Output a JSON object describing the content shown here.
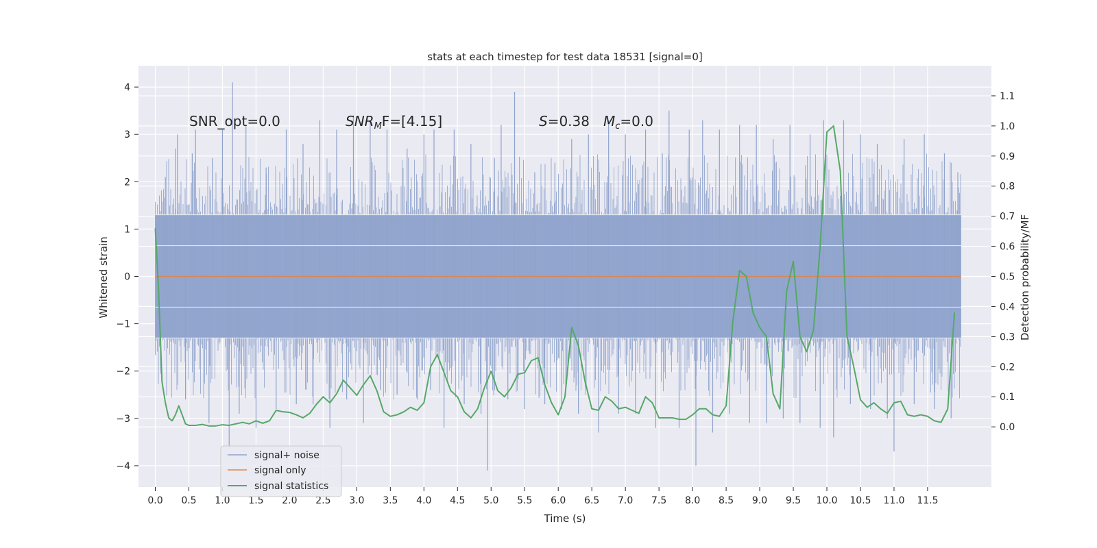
{
  "chart_data": {
    "type": "line",
    "title": "stats at each timestep for test data 18531 [signal=0]",
    "xlabel": "Time (s)",
    "ylabel": "Whitened strain",
    "ylabel_right": "Detection probability/MF",
    "xlim": [
      -0.25,
      12.45
    ],
    "ylim": [
      -4.45,
      4.45
    ],
    "ylim_right": [
      -0.2,
      1.2
    ],
    "x_ticks": [
      "0.0",
      "0.5",
      "1.0",
      "1.5",
      "2.0",
      "2.5",
      "3.0",
      "3.5",
      "4.0",
      "4.5",
      "5.0",
      "5.5",
      "6.0",
      "6.5",
      "7.0",
      "7.5",
      "8.0",
      "8.5",
      "9.0",
      "9.5",
      "10.0",
      "10.5",
      "11.0",
      "11.5"
    ],
    "y_ticks": [
      "4",
      "3",
      "2",
      "1",
      "0",
      "−1",
      "−2",
      "−3",
      "−4"
    ],
    "y_ticks_right": [
      "1.1",
      "1.0",
      "0.9",
      "0.8",
      "0.7",
      "0.6",
      "0.5",
      "0.4",
      "0.3",
      "0.2",
      "0.1",
      "0.0"
    ],
    "grid": true,
    "legend_position": "lower-left",
    "annotations": {
      "snr_opt": "SNR_opt=0.0",
      "snr_mf_main": "SNR",
      "snr_mf_sub": "M",
      "snr_mf_tail": "F=[4.15]",
      "s_sym": "S",
      "s_val": "=0.38",
      "mc_sym": "M",
      "mc_sub": "c",
      "mc_val": "=0.0"
    },
    "series": [
      {
        "name": "signal+ noise",
        "color": "#8fa3cc",
        "x_range": [
          0.0,
          12.0
        ],
        "band": [
          -1.3,
          1.3
        ],
        "peaks": [
          [
            0.15,
            2.1
          ],
          [
            0.3,
            2.7
          ],
          [
            0.33,
            3.0
          ],
          [
            0.45,
            -2.6
          ],
          [
            0.55,
            2.6
          ],
          [
            0.6,
            3.1
          ],
          [
            0.8,
            -3.1
          ],
          [
            0.85,
            2.5
          ],
          [
            1.0,
            3.1
          ],
          [
            1.1,
            -3.6
          ],
          [
            1.15,
            4.1
          ],
          [
            1.25,
            -2.9
          ],
          [
            1.35,
            3.2
          ],
          [
            1.5,
            -3.2
          ],
          [
            1.65,
            2.3
          ],
          [
            1.8,
            -2.8
          ],
          [
            1.95,
            3.1
          ],
          [
            2.1,
            -2.7
          ],
          [
            2.2,
            2.8
          ],
          [
            2.35,
            -2.7
          ],
          [
            2.45,
            3.3
          ],
          [
            2.6,
            -3.2
          ],
          [
            2.7,
            3.1
          ],
          [
            2.85,
            -2.6
          ],
          [
            2.95,
            3.4
          ],
          [
            3.1,
            -3.1
          ],
          [
            3.2,
            3.3
          ],
          [
            3.35,
            -2.4
          ],
          [
            3.45,
            3.1
          ],
          [
            3.6,
            -2.5
          ],
          [
            3.75,
            2.7
          ],
          [
            3.9,
            -2.6
          ],
          [
            4.0,
            3.0
          ],
          [
            4.1,
            -2.4
          ],
          [
            4.15,
            3.1
          ],
          [
            4.3,
            -3.2
          ],
          [
            4.45,
            3.1
          ],
          [
            4.6,
            -2.7
          ],
          [
            4.7,
            2.8
          ],
          [
            4.85,
            -2.9
          ],
          [
            4.95,
            -4.1
          ],
          [
            5.05,
            2.5
          ],
          [
            5.15,
            3.2
          ],
          [
            5.25,
            -2.6
          ],
          [
            5.35,
            3.9
          ],
          [
            5.5,
            -2.8
          ],
          [
            5.65,
            2.2
          ],
          [
            5.8,
            -2.7
          ],
          [
            5.95,
            2.4
          ],
          [
            6.05,
            -2.8
          ],
          [
            6.2,
            2.9
          ],
          [
            6.3,
            -2.9
          ],
          [
            6.45,
            3.0
          ],
          [
            6.6,
            -3.3
          ],
          [
            6.75,
            3.3
          ],
          [
            6.9,
            -2.9
          ],
          [
            7.0,
            3.0
          ],
          [
            7.15,
            -2.9
          ],
          [
            7.3,
            3.1
          ],
          [
            7.45,
            -3.2
          ],
          [
            7.55,
            2.6
          ],
          [
            7.65,
            3.5
          ],
          [
            7.8,
            -3.2
          ],
          [
            7.95,
            3.1
          ],
          [
            8.05,
            -4.0
          ],
          [
            8.15,
            3.3
          ],
          [
            8.3,
            -3.3
          ],
          [
            8.4,
            3.1
          ],
          [
            8.55,
            -2.9
          ],
          [
            8.7,
            3.2
          ],
          [
            8.85,
            -3.1
          ],
          [
            8.95,
            3.2
          ],
          [
            9.1,
            -3.1
          ],
          [
            9.2,
            2.9
          ],
          [
            9.35,
            -3.0
          ],
          [
            9.45,
            3.2
          ],
          [
            9.6,
            -3.1
          ],
          [
            9.75,
            3.0
          ],
          [
            9.9,
            -3.2
          ],
          [
            9.95,
            3.3
          ],
          [
            10.1,
            -3.4
          ],
          [
            10.25,
            3.3
          ],
          [
            10.35,
            -2.7
          ],
          [
            10.5,
            3.0
          ],
          [
            10.65,
            -2.8
          ],
          [
            10.75,
            2.8
          ],
          [
            10.9,
            -3.0
          ],
          [
            11.0,
            -3.7
          ],
          [
            11.15,
            2.9
          ],
          [
            11.3,
            -2.7
          ],
          [
            11.45,
            3.0
          ],
          [
            11.6,
            -2.8
          ],
          [
            11.75,
            2.6
          ],
          [
            11.85,
            -3.0
          ],
          [
            11.95,
            2.2
          ]
        ]
      },
      {
        "name": "signal only",
        "color": "#dd8452",
        "points": [
          [
            0.0,
            0.0
          ],
          [
            12.0,
            0.0
          ]
        ]
      },
      {
        "name": "signal statistics",
        "color": "#55a868",
        "axis": "right",
        "points": [
          [
            0.0,
            0.66
          ],
          [
            0.05,
            0.45
          ],
          [
            0.1,
            0.15
          ],
          [
            0.15,
            0.08
          ],
          [
            0.2,
            0.03
          ],
          [
            0.25,
            0.02
          ],
          [
            0.3,
            0.04
          ],
          [
            0.35,
            0.07
          ],
          [
            0.4,
            0.04
          ],
          [
            0.45,
            0.01
          ],
          [
            0.5,
            0.005
          ],
          [
            0.6,
            0.005
          ],
          [
            0.7,
            0.008
          ],
          [
            0.8,
            0.003
          ],
          [
            0.9,
            0.003
          ],
          [
            1.0,
            0.007
          ],
          [
            1.1,
            0.005
          ],
          [
            1.2,
            0.01
          ],
          [
            1.3,
            0.015
          ],
          [
            1.4,
            0.01
          ],
          [
            1.5,
            0.02
          ],
          [
            1.6,
            0.012
          ],
          [
            1.7,
            0.02
          ],
          [
            1.8,
            0.055
          ],
          [
            1.9,
            0.05
          ],
          [
            2.0,
            0.048
          ],
          [
            2.1,
            0.04
          ],
          [
            2.2,
            0.03
          ],
          [
            2.3,
            0.045
          ],
          [
            2.4,
            0.075
          ],
          [
            2.5,
            0.1
          ],
          [
            2.6,
            0.08
          ],
          [
            2.7,
            0.11
          ],
          [
            2.8,
            0.155
          ],
          [
            2.9,
            0.13
          ],
          [
            3.0,
            0.105
          ],
          [
            3.1,
            0.14
          ],
          [
            3.2,
            0.17
          ],
          [
            3.3,
            0.12
          ],
          [
            3.4,
            0.05
          ],
          [
            3.5,
            0.035
          ],
          [
            3.6,
            0.04
          ],
          [
            3.7,
            0.05
          ],
          [
            3.8,
            0.065
          ],
          [
            3.9,
            0.055
          ],
          [
            4.0,
            0.08
          ],
          [
            4.1,
            0.2
          ],
          [
            4.2,
            0.24
          ],
          [
            4.3,
            0.18
          ],
          [
            4.4,
            0.12
          ],
          [
            4.5,
            0.1
          ],
          [
            4.6,
            0.05
          ],
          [
            4.7,
            0.03
          ],
          [
            4.8,
            0.06
          ],
          [
            4.9,
            0.13
          ],
          [
            5.0,
            0.185
          ],
          [
            5.1,
            0.12
          ],
          [
            5.2,
            0.1
          ],
          [
            5.3,
            0.13
          ],
          [
            5.4,
            0.175
          ],
          [
            5.5,
            0.18
          ],
          [
            5.6,
            0.22
          ],
          [
            5.7,
            0.23
          ],
          [
            5.8,
            0.14
          ],
          [
            5.9,
            0.08
          ],
          [
            6.0,
            0.04
          ],
          [
            6.1,
            0.1
          ],
          [
            6.2,
            0.33
          ],
          [
            6.3,
            0.27
          ],
          [
            6.4,
            0.15
          ],
          [
            6.5,
            0.06
          ],
          [
            6.6,
            0.055
          ],
          [
            6.7,
            0.1
          ],
          [
            6.8,
            0.085
          ],
          [
            6.9,
            0.06
          ],
          [
            7.0,
            0.065
          ],
          [
            7.1,
            0.055
          ],
          [
            7.2,
            0.045
          ],
          [
            7.3,
            0.1
          ],
          [
            7.4,
            0.08
          ],
          [
            7.5,
            0.03
          ],
          [
            7.6,
            0.03
          ],
          [
            7.7,
            0.03
          ],
          [
            7.8,
            0.025
          ],
          [
            7.9,
            0.025
          ],
          [
            8.0,
            0.04
          ],
          [
            8.1,
            0.06
          ],
          [
            8.2,
            0.06
          ],
          [
            8.3,
            0.04
          ],
          [
            8.4,
            0.035
          ],
          [
            8.5,
            0.07
          ],
          [
            8.6,
            0.35
          ],
          [
            8.7,
            0.52
          ],
          [
            8.8,
            0.5
          ],
          [
            8.9,
            0.38
          ],
          [
            9.0,
            0.33
          ],
          [
            9.1,
            0.3
          ],
          [
            9.2,
            0.11
          ],
          [
            9.3,
            0.06
          ],
          [
            9.4,
            0.45
          ],
          [
            9.5,
            0.55
          ],
          [
            9.6,
            0.3
          ],
          [
            9.7,
            0.25
          ],
          [
            9.8,
            0.32
          ],
          [
            9.9,
            0.6
          ],
          [
            10.0,
            0.98
          ],
          [
            10.1,
            1.0
          ],
          [
            10.2,
            0.85
          ],
          [
            10.3,
            0.3
          ],
          [
            10.4,
            0.2
          ],
          [
            10.5,
            0.09
          ],
          [
            10.6,
            0.065
          ],
          [
            10.7,
            0.08
          ],
          [
            10.8,
            0.06
          ],
          [
            10.9,
            0.045
          ],
          [
            11.0,
            0.08
          ],
          [
            11.1,
            0.085
          ],
          [
            11.2,
            0.04
          ],
          [
            11.3,
            0.035
          ],
          [
            11.4,
            0.04
          ],
          [
            11.5,
            0.035
          ],
          [
            11.6,
            0.02
          ],
          [
            11.7,
            0.015
          ],
          [
            11.8,
            0.06
          ],
          [
            11.9,
            0.38
          ]
        ]
      }
    ]
  }
}
